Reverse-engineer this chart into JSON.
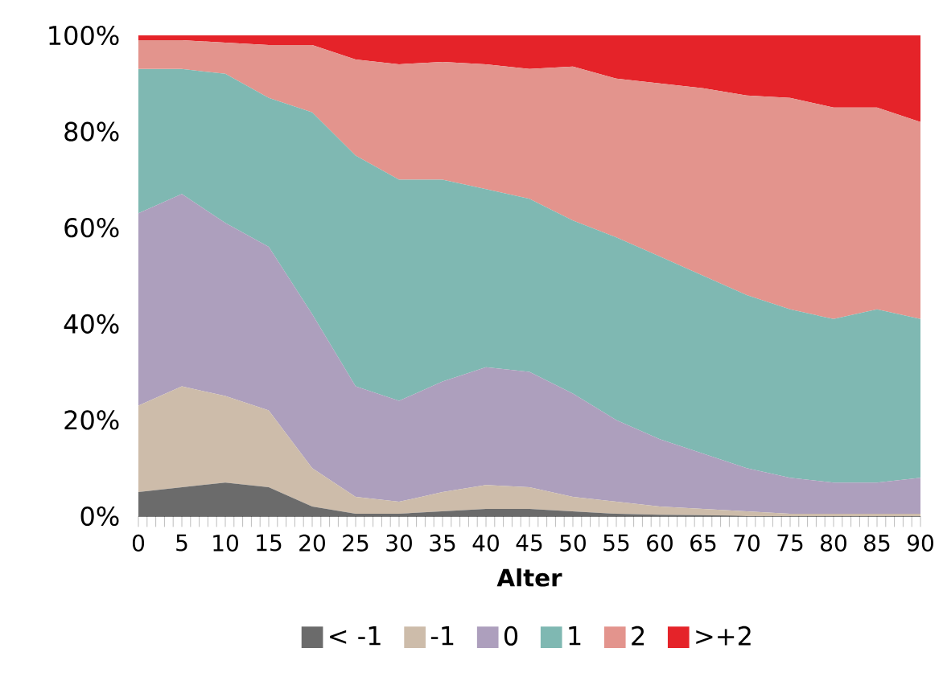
{
  "chart_data": {
    "type": "area",
    "stacked": true,
    "xlabel": "Alter",
    "x": [
      0,
      5,
      10,
      15,
      20,
      25,
      30,
      35,
      40,
      45,
      50,
      55,
      60,
      65,
      70,
      75,
      80,
      85,
      90
    ],
    "series": [
      {
        "name": "< -1",
        "color": "#6b6b6b",
        "values": [
          5,
          6,
          7,
          6,
          2,
          0.5,
          0.5,
          1,
          1.5,
          1.5,
          1,
          0.5,
          0.3,
          0.2,
          0,
          0,
          0,
          0,
          0
        ]
      },
      {
        "name": "-1",
        "color": "#cdbcaa",
        "values": [
          18,
          21,
          18,
          16,
          8,
          3.5,
          2.5,
          4,
          5,
          4.5,
          3,
          2.5,
          1.7,
          1.3,
          1,
          0.5,
          0.5,
          0.5,
          0.5
        ]
      },
      {
        "name": "0",
        "color": "#ad9fbd",
        "values": [
          40,
          40,
          36,
          34,
          32,
          23,
          21,
          23,
          24.5,
          24,
          21.5,
          17,
          14,
          11.5,
          9,
          7.5,
          6.5,
          6.5,
          7.5
        ]
      },
      {
        "name": "1",
        "color": "#7fb8b2",
        "values": [
          30,
          26,
          31,
          31,
          42,
          48,
          46,
          42,
          37,
          36,
          36,
          38,
          38,
          37,
          36,
          35,
          34,
          36,
          33
        ]
      },
      {
        "name": "2",
        "color": "#e3948d",
        "values": [
          6,
          6,
          6.5,
          11,
          14,
          20,
          24,
          24.5,
          26,
          27,
          32,
          33,
          36,
          39,
          41.5,
          44,
          44,
          42,
          41
        ]
      },
      {
        "name": ">+2",
        "color": "#e52329",
        "values": [
          1,
          1,
          1.5,
          2,
          2,
          5,
          6,
          5.5,
          6,
          7,
          6.5,
          9,
          10,
          11,
          12.5,
          13,
          15,
          15,
          18
        ]
      }
    ],
    "xlim": [
      0,
      90
    ],
    "xticks": [
      0,
      5,
      10,
      15,
      20,
      25,
      30,
      35,
      40,
      45,
      50,
      55,
      60,
      65,
      70,
      75,
      80,
      85,
      90
    ],
    "ylim": [
      0,
      100
    ],
    "yticks": [
      {
        "value": 0,
        "label": "0%"
      },
      {
        "value": 20,
        "label": "20%"
      },
      {
        "value": 40,
        "label": "40%"
      },
      {
        "value": 60,
        "label": "60%"
      },
      {
        "value": 80,
        "label": "80%"
      },
      {
        "value": 100,
        "label": "100%"
      }
    ],
    "legend": "bottom"
  }
}
